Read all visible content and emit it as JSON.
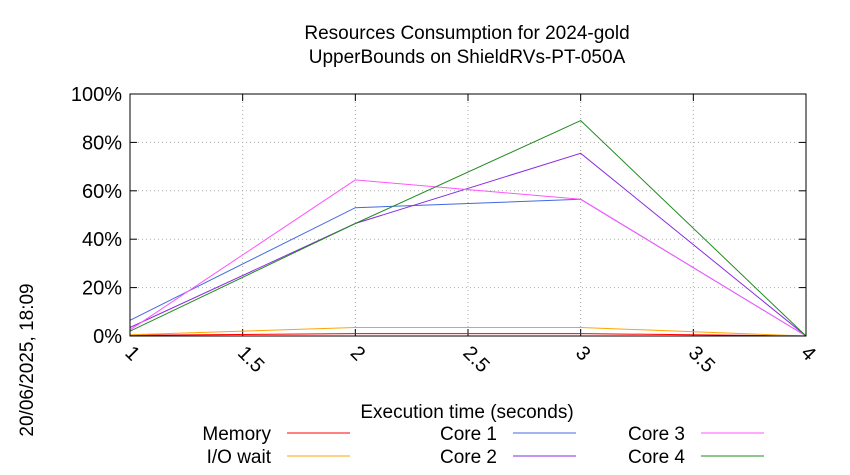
{
  "chart_data": {
    "type": "line",
    "title": "Resources Consumption for 2024-gold",
    "subtitle": "UpperBounds on ShieldRVs-PT-050A",
    "xlabel": "Execution time (seconds)",
    "ylabel": "",
    "side_label": "20/06/2025, 18:09",
    "xlim": [
      1,
      4
    ],
    "ylim": [
      0,
      100
    ],
    "x_ticks": [
      "1",
      "1.5",
      "2",
      "2.5",
      "3",
      "3.5",
      "4"
    ],
    "y_ticks": [
      "0%",
      "20%",
      "40%",
      "60%",
      "80%",
      "100%"
    ],
    "grid": true,
    "legend_position": "bottom",
    "x": [
      1,
      2,
      3,
      4
    ],
    "series": [
      {
        "name": "Memory",
        "color": "#ff0000",
        "values": [
          0.3,
          1.0,
          1.0,
          0
        ]
      },
      {
        "name": "I/O wait",
        "color": "#ffa500",
        "values": [
          0.5,
          3.5,
          3.5,
          0
        ]
      },
      {
        "name": "Core 1",
        "color": "#4169e1",
        "values": [
          6.5,
          53,
          56.5,
          0
        ]
      },
      {
        "name": "Core 2",
        "color": "#8a2be2",
        "values": [
          3.5,
          46.5,
          75.5,
          0
        ]
      },
      {
        "name": "Core 3",
        "color": "#ff55ff",
        "values": [
          2.5,
          64.5,
          56.5,
          0
        ]
      },
      {
        "name": "Core 4",
        "color": "#228b22",
        "values": [
          2.0,
          46.5,
          89,
          0
        ]
      }
    ]
  }
}
